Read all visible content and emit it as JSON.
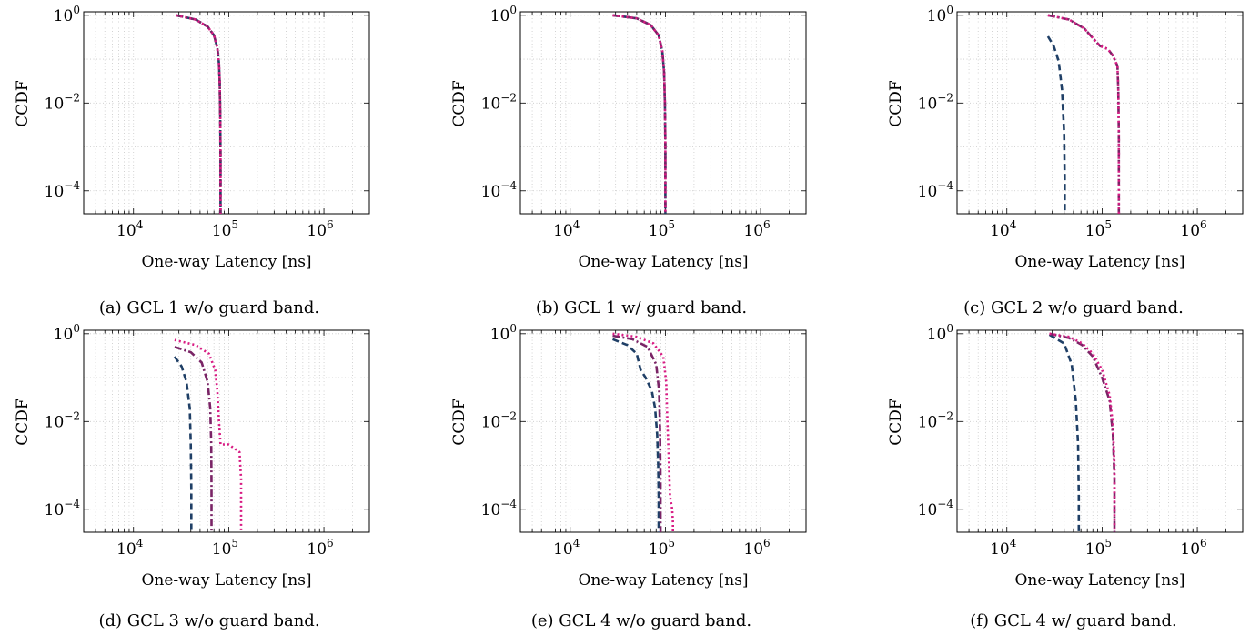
{
  "figure": {
    "panels": [
      {
        "caption": "(a) GCL 1 w/o guard band."
      },
      {
        "caption": "(b) GCL 1 w/ guard band."
      },
      {
        "caption": "(c) GCL 2 w/o guard band."
      },
      {
        "caption": "(d) GCL 3 w/o guard band."
      },
      {
        "caption": "(e) GCL 4 w/o guard band."
      },
      {
        "caption": "(f) GCL 4 w/ guard band."
      }
    ]
  },
  "chart_data": [
    {
      "type": "line",
      "caption": "(a) GCL 1 w/o guard band.",
      "xlabel": "One-way Latency [ns]",
      "ylabel": "CCDF",
      "xscale": "log",
      "yscale": "log",
      "xlim": [
        3000,
        3000000
      ],
      "ylim": [
        3e-05,
        1.2
      ],
      "xticks": [
        "10^4",
        "10^5",
        "10^6"
      ],
      "yticks": [
        "10^0",
        "10^-2",
        "10^-4"
      ],
      "grid": true,
      "series": [
        {
          "style": "dashed",
          "color": "#1f3f66",
          "x": [
            28000,
            45000,
            60000,
            70000,
            76000,
            79000,
            80500,
            81500,
            82000,
            82000
          ],
          "y": [
            1.0,
            0.8,
            0.55,
            0.35,
            0.18,
            0.08,
            0.03,
            0.005,
            0.0005,
            3e-05
          ]
        },
        {
          "style": "dashdot",
          "color": "#7a2466",
          "x": [
            28000,
            45000,
            60000,
            70000,
            76000,
            79000,
            80500,
            81500,
            82000,
            82000
          ],
          "y": [
            1.0,
            0.8,
            0.55,
            0.35,
            0.18,
            0.08,
            0.03,
            0.005,
            0.0005,
            3e-05
          ]
        },
        {
          "style": "dotted",
          "color": "#d81b83",
          "x": [
            28000,
            45000,
            60000,
            70000,
            76000,
            79000,
            80500,
            81500,
            82000,
            82000
          ],
          "y": [
            1.0,
            0.8,
            0.55,
            0.35,
            0.18,
            0.08,
            0.03,
            0.005,
            0.0005,
            3e-05
          ]
        }
      ]
    },
    {
      "type": "line",
      "caption": "(b) GCL 1 w/ guard band.",
      "xlabel": "One-way Latency [ns]",
      "ylabel": "CCDF",
      "xscale": "log",
      "yscale": "log",
      "xlim": [
        3000,
        3000000
      ],
      "ylim": [
        3e-05,
        1.2
      ],
      "xticks": [
        "10^4",
        "10^5",
        "10^6"
      ],
      "yticks": [
        "10^0",
        "10^-2",
        "10^-4"
      ],
      "grid": true,
      "series": [
        {
          "style": "dashed",
          "color": "#1f3f66",
          "x": [
            28000,
            50000,
            70000,
            85000,
            93000,
            97000,
            99000,
            100000,
            100000
          ],
          "y": [
            1.0,
            0.85,
            0.6,
            0.35,
            0.15,
            0.05,
            0.01,
            0.001,
            3e-05
          ]
        },
        {
          "style": "dashdot",
          "color": "#7a2466",
          "x": [
            28000,
            50000,
            70000,
            85000,
            93000,
            97000,
            99000,
            100000,
            100000
          ],
          "y": [
            1.0,
            0.85,
            0.6,
            0.35,
            0.15,
            0.05,
            0.01,
            0.001,
            3e-05
          ]
        },
        {
          "style": "dotted",
          "color": "#d81b83",
          "x": [
            28000,
            50000,
            70000,
            85000,
            93000,
            97000,
            99000,
            100000,
            100000
          ],
          "y": [
            1.0,
            0.85,
            0.6,
            0.35,
            0.15,
            0.05,
            0.01,
            0.001,
            3e-05
          ]
        }
      ]
    },
    {
      "type": "line",
      "caption": "(c) GCL 2 w/o guard band.",
      "xlabel": "One-way Latency [ns]",
      "ylabel": "CCDF",
      "xscale": "log",
      "yscale": "log",
      "xlim": [
        3000,
        3000000
      ],
      "ylim": [
        3e-05,
        1.2
      ],
      "xticks": [
        "10^4",
        "10^5",
        "10^6"
      ],
      "yticks": [
        "10^0",
        "10^-2",
        "10^-4"
      ],
      "grid": true,
      "series": [
        {
          "style": "dashed",
          "color": "#1f3f66",
          "x": [
            27000,
            31000,
            35000,
            38000,
            40000,
            40500,
            40500
          ],
          "y": [
            0.33,
            0.2,
            0.09,
            0.02,
            0.002,
            0.0002,
            3e-05
          ]
        },
        {
          "style": "dashdot",
          "color": "#7a2466",
          "x": [
            27000,
            45000,
            65000,
            80000,
            95000,
            115000,
            130000,
            145000,
            148000,
            150000,
            150000
          ],
          "y": [
            1.0,
            0.8,
            0.5,
            0.3,
            0.2,
            0.17,
            0.12,
            0.07,
            0.02,
            0.002,
            3e-05
          ]
        },
        {
          "style": "dotted",
          "color": "#d81b83",
          "x": [
            27000,
            45000,
            65000,
            80000,
            95000,
            115000,
            130000,
            145000,
            148000,
            150000,
            150000
          ],
          "y": [
            1.0,
            0.8,
            0.5,
            0.3,
            0.2,
            0.17,
            0.12,
            0.07,
            0.02,
            0.002,
            3e-05
          ]
        }
      ]
    },
    {
      "type": "line",
      "caption": "(d) GCL 3 w/o guard band.",
      "xlabel": "One-way Latency [ns]",
      "ylabel": "CCDF",
      "xscale": "log",
      "yscale": "log",
      "xlim": [
        3000,
        3000000
      ],
      "ylim": [
        3e-05,
        1.2
      ],
      "xticks": [
        "10^4",
        "10^5",
        "10^6"
      ],
      "yticks": [
        "10^0",
        "10^-2",
        "10^-4"
      ],
      "grid": true,
      "series": [
        {
          "style": "dashed",
          "color": "#1f3f66",
          "x": [
            27000,
            32000,
            36000,
            39000,
            40000,
            40500,
            40500
          ],
          "y": [
            0.3,
            0.18,
            0.08,
            0.02,
            0.003,
            0.0003,
            3e-05
          ]
        },
        {
          "style": "dashdot",
          "color": "#7a2466",
          "x": [
            27000,
            40000,
            52000,
            60000,
            64000,
            65500,
            66000,
            66000
          ],
          "y": [
            0.5,
            0.38,
            0.22,
            0.08,
            0.02,
            0.003,
            0.0003,
            3e-05
          ]
        },
        {
          "style": "dotted",
          "color": "#d81b83",
          "x": [
            27000,
            45000,
            62000,
            72000,
            76000,
            79000,
            82000,
            100000,
            130000,
            135000,
            135000
          ],
          "y": [
            0.72,
            0.55,
            0.35,
            0.15,
            0.05,
            0.01,
            0.003,
            0.003,
            0.002,
            0.0005,
            3e-05
          ]
        }
      ]
    },
    {
      "type": "line",
      "caption": "(e) GCL 4 w/o guard band.",
      "xlabel": "One-way Latency [ns]",
      "ylabel": "CCDF",
      "xscale": "log",
      "yscale": "log",
      "xlim": [
        3000,
        3000000
      ],
      "ylim": [
        3e-05,
        1.2
      ],
      "xticks": [
        "10^4",
        "10^5",
        "10^6"
      ],
      "yticks": [
        "10^0",
        "10^-2",
        "10^-4"
      ],
      "grid": true,
      "series": [
        {
          "style": "dashed",
          "color": "#1f3f66",
          "x": [
            28000,
            40000,
            50000,
            55000,
            62000,
            72000,
            78000,
            82000,
            84000,
            85000,
            85000
          ],
          "y": [
            0.75,
            0.55,
            0.35,
            0.15,
            0.1,
            0.05,
            0.02,
            0.005,
            0.001,
            0.0002,
            3e-05
          ]
        },
        {
          "style": "dashdot",
          "color": "#7a2466",
          "x": [
            28000,
            45000,
            65000,
            80000,
            86000,
            88000,
            89000,
            89000
          ],
          "y": [
            0.9,
            0.75,
            0.5,
            0.2,
            0.05,
            0.005,
            0.0005,
            3e-05
          ]
        },
        {
          "style": "dotted",
          "color": "#d81b83",
          "x": [
            28000,
            50000,
            75000,
            95000,
            102000,
            105000,
            108000,
            112000,
            118000,
            120000,
            120000
          ],
          "y": [
            1.0,
            0.85,
            0.6,
            0.3,
            0.08,
            0.01,
            0.002,
            0.0002,
            0.0001,
            5e-05,
            3e-05
          ]
        }
      ]
    },
    {
      "type": "line",
      "caption": "(f) GCL 4 w/ guard band.",
      "xlabel": "One-way Latency [ns]",
      "ylabel": "CCDF",
      "xscale": "log",
      "yscale": "log",
      "xlim": [
        3000,
        3000000
      ],
      "ylim": [
        3e-05,
        1.2
      ],
      "xticks": [
        "10^4",
        "10^5",
        "10^6"
      ],
      "yticks": [
        "10^0",
        "10^-2",
        "10^-4"
      ],
      "grid": true,
      "series": [
        {
          "style": "dashed",
          "color": "#1f3f66",
          "x": [
            28000,
            40000,
            48000,
            53000,
            56000,
            57000,
            57000
          ],
          "y": [
            0.95,
            0.6,
            0.2,
            0.03,
            0.003,
            0.0002,
            3e-05
          ]
        },
        {
          "style": "dashdot",
          "color": "#7a2466",
          "x": [
            28000,
            45000,
            62000,
            80000,
            100000,
            120000,
            130000,
            135000,
            135000
          ],
          "y": [
            1.0,
            0.8,
            0.55,
            0.3,
            0.1,
            0.03,
            0.005,
            0.0005,
            3e-05
          ]
        },
        {
          "style": "dotted",
          "color": "#d81b83",
          "x": [
            28000,
            45000,
            62000,
            80000,
            100000,
            120000,
            130000,
            135000,
            135000
          ],
          "y": [
            1.0,
            0.85,
            0.6,
            0.35,
            0.15,
            0.04,
            0.008,
            0.001,
            3e-05
          ]
        }
      ]
    }
  ]
}
